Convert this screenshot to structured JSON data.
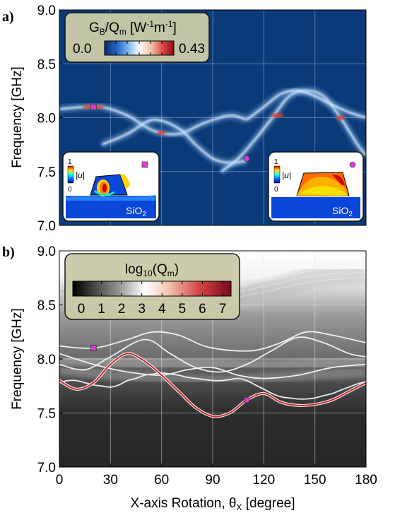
{
  "chart_data": [
    {
      "type": "heatmap",
      "panel_label": "a)",
      "ylabel": "Frequency [GHz]",
      "ylim": [
        7.0,
        9.0
      ],
      "xlim": [
        0,
        180
      ],
      "yticks": [
        "7.0",
        "7.5",
        "8.0",
        "8.5",
        "9.0"
      ],
      "grid": true,
      "colorbar": {
        "title_main": "G",
        "title_sub": "B",
        "title_mid": "/Q",
        "title_sub2": "m",
        "title_unit": "[W",
        "title_exp1": "-1",
        "title_unit2": "m",
        "title_exp2": "-1",
        "title_close": "]",
        "min_label": "0.0",
        "max_label": "0.43",
        "colormap": "blue-white-red"
      },
      "ridges": [
        {
          "x": [
            0,
            15,
            25,
            40,
            55,
            70,
            85,
            100,
            110
          ],
          "y": [
            8.08,
            8.1,
            8.1,
            8.02,
            7.88,
            7.85,
            7.95,
            8.02,
            7.98
          ]
        },
        {
          "x": [
            25,
            40,
            55,
            70,
            80,
            90,
            100,
            110
          ],
          "y": [
            7.75,
            7.85,
            7.98,
            7.9,
            7.75,
            7.62,
            7.58,
            7.6
          ]
        },
        {
          "x": [
            95,
            105,
            115,
            125,
            135,
            145,
            155,
            165,
            175,
            180
          ],
          "y": [
            7.5,
            7.62,
            7.8,
            8.0,
            8.2,
            8.25,
            8.2,
            8.0,
            7.75,
            7.65
          ]
        },
        {
          "x": [
            110,
            120,
            130,
            140,
            150,
            160,
            170,
            180
          ],
          "y": [
            7.98,
            8.1,
            8.22,
            8.25,
            8.2,
            8.12,
            8.05,
            8.0
          ]
        }
      ],
      "markers": [
        {
          "shape": "square",
          "x": 20,
          "y": 8.1
        },
        {
          "shape": "circle",
          "x": 110,
          "y": 7.62
        }
      ],
      "insets": [
        {
          "scale_max": "1",
          "scale_min": "0",
          "quantity": "|u|",
          "substrate": "SiO2",
          "substrate_main": "SiO",
          "substrate_sub": "2",
          "marker": "square"
        },
        {
          "scale_max": "1",
          "scale_min": "0",
          "quantity": "|u|",
          "substrate": "SiO2",
          "substrate_main": "SiO",
          "substrate_sub": "2",
          "marker": "circle"
        }
      ]
    },
    {
      "type": "line",
      "panel_label": "b)",
      "ylabel": "Frequency [GHz]",
      "xlabel_main": "X-axis Rotation, θ",
      "xlabel_sub": "X",
      "xlabel_tail": " [degree]",
      "ylim": [
        7.0,
        9.0
      ],
      "xlim": [
        0,
        180
      ],
      "xticks": [
        "0",
        "30",
        "60",
        "90",
        "120",
        "150",
        "180"
      ],
      "yticks": [
        "7.0",
        "7.5",
        "8.0",
        "8.5",
        "9.0"
      ],
      "grid": true,
      "colorbar": {
        "title_main": "log",
        "title_sub": "10",
        "title_tail": "(Q",
        "title_sub2": "m",
        "title_close": ")",
        "ticks": [
          "0",
          "1",
          "2",
          "3",
          "4",
          "5",
          "6",
          "7"
        ],
        "colormap": "black-white-red"
      },
      "series": [
        {
          "x": [
            0,
            20,
            40,
            55,
            70,
            85,
            100,
            115,
            130,
            145,
            160,
            180
          ],
          "y": [
            8.12,
            8.1,
            8.18,
            8.25,
            8.22,
            8.12,
            8.08,
            8.08,
            8.15,
            8.25,
            8.22,
            8.15
          ]
        },
        {
          "x": [
            0,
            15,
            30,
            50,
            65,
            80,
            95,
            110,
            125,
            140,
            155,
            170,
            180
          ],
          "y": [
            7.95,
            7.9,
            8.02,
            8.18,
            8.05,
            7.92,
            7.88,
            7.95,
            8.08,
            8.2,
            8.15,
            8.05,
            8.02
          ]
        },
        {
          "x": [
            0,
            20,
            40,
            60,
            75,
            90,
            105,
            120,
            140,
            160,
            180
          ],
          "y": [
            8.05,
            7.95,
            7.88,
            7.85,
            7.9,
            7.92,
            7.85,
            7.82,
            7.85,
            7.92,
            7.95
          ]
        },
        {
          "x": [
            0,
            5,
            10,
            15,
            20,
            25,
            30,
            35,
            40,
            45,
            50,
            55,
            60,
            65,
            70,
            75,
            80,
            85,
            90,
            95,
            100,
            105,
            110,
            115,
            120,
            125,
            130,
            135,
            140,
            145,
            150,
            155,
            160,
            165,
            170,
            175,
            180
          ],
          "y": [
            7.78,
            7.8,
            7.8,
            7.78,
            7.76,
            7.75,
            7.74,
            7.76,
            7.8,
            7.82,
            7.85,
            7.86,
            7.87,
            7.86,
            7.85,
            7.83,
            7.82,
            7.81,
            7.8,
            7.8,
            7.81,
            7.82,
            7.8,
            7.76,
            7.72,
            7.68,
            7.65,
            7.64,
            7.63,
            7.63,
            7.64,
            7.66,
            7.68,
            7.71,
            7.74,
            7.77,
            7.79
          ]
        },
        {
          "x": [
            0,
            10,
            20,
            30,
            40,
            50,
            60,
            70,
            80,
            90,
            100,
            110,
            120,
            130,
            140,
            150,
            160,
            170,
            180
          ],
          "y": [
            7.8,
            7.72,
            7.78,
            7.95,
            8.05,
            7.98,
            7.85,
            7.7,
            7.55,
            7.47,
            7.5,
            7.62,
            7.68,
            7.6,
            7.57,
            7.58,
            7.62,
            7.7,
            7.78
          ]
        }
      ],
      "markers": [
        {
          "shape": "square",
          "x": 20,
          "y": 8.1
        },
        {
          "shape": "circle",
          "x": 110,
          "y": 7.62
        }
      ]
    }
  ],
  "colors": {
    "heatmap_bg": "#0b3a78",
    "ridge_glow": "#8fc0ea",
    "ridge_core": "#e8f0ff",
    "marker": "#d63fd6",
    "panel_b_bg": "#272727",
    "band_light": "#bdbdbd",
    "line_red": "#c0272d",
    "legend_bg": "#c9cba8"
  }
}
